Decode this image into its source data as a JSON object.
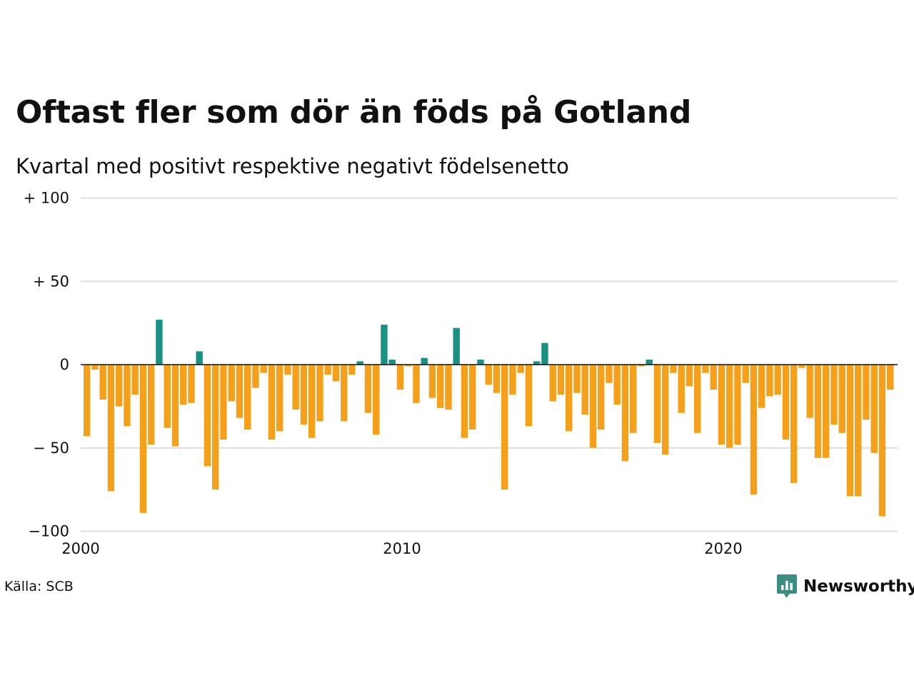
{
  "title": "Oftast fler som dör än föds på Gotland",
  "subtitle": "Kvartal med positivt respektive negativt födelsenetto",
  "source": "Källa: SCB",
  "logo_text": "Newsworthy",
  "colors": {
    "positive": "#1a9182",
    "negative": "#f5a01a",
    "grid": "#dddddd",
    "zero_line": "#111111",
    "logo": "#3a8f82"
  },
  "chart_data": {
    "type": "bar",
    "ylim": [
      -100,
      100
    ],
    "y_ticks": [
      {
        "value": 100,
        "label": "+ 100"
      },
      {
        "value": 50,
        "label": "+  50"
      },
      {
        "value": 0,
        "label": "0"
      },
      {
        "value": -50,
        "label": "− 50"
      },
      {
        "value": -100,
        "label": "−100"
      }
    ],
    "x_ticks": [
      {
        "year": 2000,
        "label": "2000"
      },
      {
        "year": 2010,
        "label": "2010"
      },
      {
        "year": 2020,
        "label": "2020"
      }
    ],
    "start_year": 2000,
    "start_quarter": 1,
    "values": [
      -43,
      -3,
      -21,
      -76,
      -25,
      -37,
      -18,
      -89,
      -48,
      27,
      -38,
      -49,
      -24,
      -23,
      8,
      -61,
      -75,
      -45,
      -22,
      -32,
      -39,
      -14,
      -5,
      -45,
      -40,
      -6,
      -27,
      -36,
      -44,
      -34,
      -6,
      -10,
      -34,
      -6,
      2,
      -29,
      -42,
      24,
      3,
      -15,
      -1,
      -23,
      4,
      -20,
      -26,
      -27,
      22,
      -44,
      -39,
      3,
      -12,
      -17,
      -75,
      -18,
      -5,
      -37,
      2,
      13,
      -22,
      -18,
      -40,
      -17,
      -30,
      -50,
      -39,
      -11,
      -24,
      -58,
      -41,
      -1,
      3,
      -47,
      -54,
      -5,
      -29,
      -13,
      -41,
      -5,
      -15,
      -48,
      -50,
      -48,
      -11,
      -78,
      -26,
      -19,
      -18,
      -45,
      -71,
      -2,
      -32,
      -56,
      -56,
      -36,
      -41,
      -79,
      -79,
      -33,
      -53,
      -91,
      -15
    ]
  }
}
